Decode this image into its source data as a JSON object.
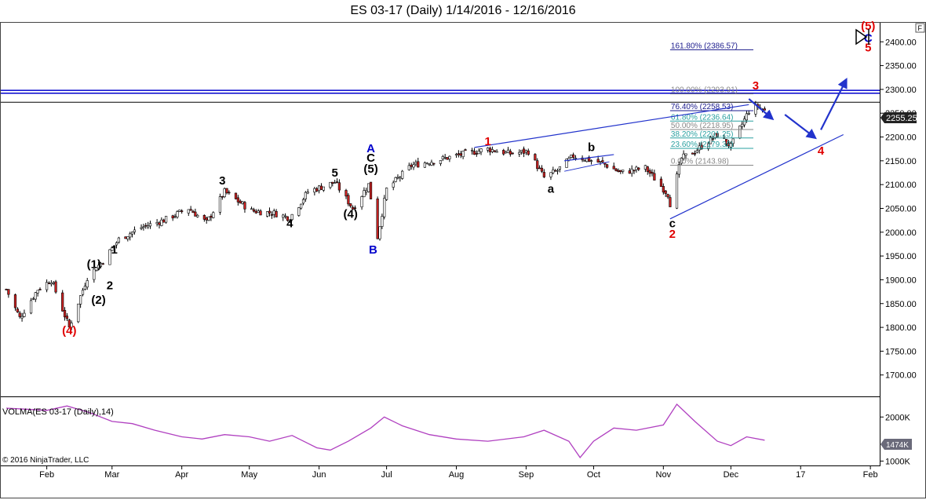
{
  "header": {
    "title": "ES 03-17 (Daily)  1/14/2016 - 12/16/2016"
  },
  "price_panel": {
    "last_price_label": "2255.25",
    "corner_label": "F"
  },
  "volume_panel": {
    "indicator_label": "VOLMA(ES 03-17 (Daily),14)",
    "last_value_label": "1474K",
    "copyright": "© 2016 NinjaTrader, LLC"
  },
  "colors": {
    "wave_red": "#e00000",
    "wave_blue": "#0000cc",
    "wave_black": "#000000",
    "trendline": "#2233cc",
    "volma": "#b040c0",
    "fib_teal": "#2aa0a0",
    "fib_gray": "#888888",
    "fib_navy": "#1a1a8c"
  },
  "chart_data": [
    {
      "type": "candlestick",
      "title": "ES 03-17 (Daily)  1/14/2016 - 12/16/2016",
      "x_ticks": [
        "Feb",
        "Mar",
        "Apr",
        "May",
        "Jun",
        "Jul",
        "Aug",
        "Sep",
        "Oct",
        "Nov",
        "Dec",
        "17",
        "Feb"
      ],
      "y_ticks": [
        "1700.00",
        "1750.00",
        "1800.00",
        "1850.00",
        "1900.00",
        "1950.00",
        "2000.00",
        "2050.00",
        "2100.00",
        "2150.00",
        "2200.00",
        "2250.00",
        "2300.00",
        "2350.00",
        "2400.00"
      ],
      "ylim": [
        1655,
        2440
      ],
      "grid": false,
      "last_price": 2255.25,
      "close_path": [
        [
          "1/14/2016",
          1880
        ],
        [
          "1/20/2016",
          1820
        ],
        [
          "1/28/2016",
          1880
        ],
        [
          "2/3/2016",
          1900
        ],
        [
          "2/11/2016",
          1800
        ],
        [
          "2/19/2016",
          1905
        ],
        [
          "2/26/2016",
          1940
        ],
        [
          "3/4/2016",
          1985
        ],
        [
          "3/14/2016",
          2010
        ],
        [
          "3/24/2016",
          2025
        ],
        [
          "4/4/2016",
          2050
        ],
        [
          "4/12/2016",
          2020
        ],
        [
          "4/20/2016",
          2085
        ],
        [
          "5/2/2016",
          2045
        ],
        [
          "5/12/2016",
          2040
        ],
        [
          "5/19/2016",
          2030
        ],
        [
          "5/27/2016",
          2085
        ],
        [
          "6/8/2016",
          2105
        ],
        [
          "6/16/2016",
          2050
        ],
        [
          "6/23/2016",
          2100
        ],
        [
          "6/27/2016",
          1990
        ],
        [
          "7/1/2016",
          2090
        ],
        [
          "7/12/2016",
          2140
        ],
        [
          "7/22/2016",
          2150
        ],
        [
          "8/5/2016",
          2165
        ],
        [
          "8/15/2016",
          2175
        ],
        [
          "8/25/2016",
          2165
        ],
        [
          "9/2/2016",
          2170
        ],
        [
          "9/9/2016",
          2115
        ],
        [
          "9/15/2016",
          2130
        ],
        [
          "9/22/2016",
          2160
        ],
        [
          "10/5/2016",
          2145
        ],
        [
          "10/13/2016",
          2125
        ],
        [
          "10/24/2016",
          2135
        ],
        [
          "11/3/2016",
          2080
        ],
        [
          "11/4/2016",
          2060
        ],
        [
          "11/9/2016",
          2155
        ],
        [
          "11/15/2016",
          2170
        ],
        [
          "11/25/2016",
          2205
        ],
        [
          "12/1/2016",
          2180
        ],
        [
          "12/9/2016",
          2255
        ],
        [
          "12/13/2016",
          2265
        ],
        [
          "12/16/2016",
          2255
        ]
      ],
      "horizontal_lines": [
        2298,
        2292,
        2273
      ],
      "trendlines": [
        {
          "from": [
            "8/9/2016",
            2178
          ],
          "to": [
            "12/9/2016",
            2268
          ]
        },
        {
          "from": [
            "11/4/2016",
            2028
          ],
          "to": [
            "1/20/2017",
            2205
          ]
        },
        {
          "from": [
            "9/18/2016",
            2150
          ],
          "to": [
            "10/10/2016",
            2163
          ]
        },
        {
          "from": [
            "9/18/2016",
            2150
          ],
          "to": [
            "9/18/2016",
            2150
          ]
        }
      ],
      "projected_arrows": [
        {
          "from": [
            "12/9/2016",
            2280
          ],
          "to": [
            "12/19/2016",
            2240
          ]
        },
        {
          "from": [
            "12/25/2016",
            2247
          ],
          "to": [
            "1/7/2017",
            2200
          ]
        },
        {
          "from": [
            "1/10/2017",
            2215
          ],
          "to": [
            "1/21/2017",
            2318
          ]
        }
      ],
      "fibonacci_levels": [
        {
          "label": "161.80% (2386.57)",
          "value": 2386.57,
          "color": "navy"
        },
        {
          "label": "100.00% (2293.91)",
          "value": 2293.91,
          "color": "gray"
        },
        {
          "label": "76.40% (2258.53)",
          "value": 2258.53,
          "color": "navy"
        },
        {
          "label": "61.80% (2236.64)",
          "value": 2236.64,
          "color": "teal"
        },
        {
          "label": "50.00% (2218.95)",
          "value": 2218.95,
          "color": "gray"
        },
        {
          "label": "38.20% (2201.25)",
          "value": 2201.25,
          "color": "teal"
        },
        {
          "label": "23.60% (2179.38)",
          "value": 2179.38,
          "color": "teal"
        },
        {
          "label": "0.00% (2143.98)",
          "value": 2143.98,
          "color": "gray"
        }
      ],
      "wave_labels": [
        {
          "text": "(4)",
          "date": "2/11/2016",
          "price": 1785,
          "color": "red"
        },
        {
          "text": "(1)",
          "date": "2/22/2016",
          "price": 1925,
          "color": "black"
        },
        {
          "text": "(2)",
          "date": "2/24/2016",
          "price": 1850,
          "color": "black"
        },
        {
          "text": "1",
          "date": "3/2/2016",
          "price": 1955,
          "color": "black"
        },
        {
          "text": "2",
          "date": "2/29/2016",
          "price": 1880,
          "color": "black"
        },
        {
          "text": "3",
          "date": "4/19/2016",
          "price": 2100,
          "color": "black"
        },
        {
          "text": "4",
          "date": "5/19/2016",
          "price": 2010,
          "color": "black"
        },
        {
          "text": "5",
          "date": "6/8/2016",
          "price": 2117,
          "color": "black"
        },
        {
          "text": "(4)",
          "date": "6/15/2016",
          "price": 2030,
          "color": "black"
        },
        {
          "text": "(5)",
          "date": "6/24/2016",
          "price": 2125,
          "color": "black"
        },
        {
          "text": "C",
          "date": "6/24/2016",
          "price": 2148,
          "color": "black"
        },
        {
          "text": "A",
          "date": "6/24/2016",
          "price": 2168,
          "color": "blue"
        },
        {
          "text": "B",
          "date": "6/25/2016",
          "price": 1955,
          "color": "blue"
        },
        {
          "text": "1",
          "date": "8/15/2016",
          "price": 2183,
          "color": "red"
        },
        {
          "text": "a",
          "date": "9/12/2016",
          "price": 2083,
          "color": "black"
        },
        {
          "text": "b",
          "date": "9/30/2016",
          "price": 2170,
          "color": "black"
        },
        {
          "text": "c",
          "date": "11/5/2016",
          "price": 2010,
          "color": "black"
        },
        {
          "text": "2",
          "date": "11/5/2016",
          "price": 1988,
          "color": "red"
        },
        {
          "text": "3",
          "date": "12/12/2016",
          "price": 2300,
          "color": "red"
        },
        {
          "text": "4",
          "date": "1/10/2017",
          "price": 2163,
          "color": "red"
        },
        {
          "text": "(5)",
          "date": "1/31/2017",
          "price": 2425,
          "color": "red"
        },
        {
          "text": "C",
          "date": "1/31/2017",
          "price": 2400,
          "color": "blue"
        },
        {
          "text": "5",
          "date": "1/31/2017",
          "price": 2380,
          "color": "red"
        }
      ]
    },
    {
      "type": "line",
      "title": "VOLMA(ES 03-17 (Daily),14)",
      "y_ticks": [
        "1000K",
        "2000K"
      ],
      "ylim": [
        900,
        2450
      ],
      "last_value": 1474,
      "series": [
        {
          "name": "VOLMA(ES 03-17 (Daily),14)",
          "values": [
            [
              "1/14/2016",
              2200
            ],
            [
              "1/22/2016",
              2180
            ],
            [
              "2/1/2016",
              2150
            ],
            [
              "2/10/2016",
              2250
            ],
            [
              "2/20/2016",
              2100
            ],
            [
              "3/1/2016",
              1900
            ],
            [
              "3/10/2016",
              1850
            ],
            [
              "3/20/2016",
              1700
            ],
            [
              "4/1/2016",
              1550
            ],
            [
              "4/10/2016",
              1500
            ],
            [
              "4/20/2016",
              1600
            ],
            [
              "5/1/2016",
              1550
            ],
            [
              "5/10/2016",
              1450
            ],
            [
              "5/20/2016",
              1580
            ],
            [
              "5/31/2016",
              1300
            ],
            [
              "6/6/2016",
              1250
            ],
            [
              "6/14/2016",
              1450
            ],
            [
              "6/24/2016",
              1750
            ],
            [
              "6/30/2016",
              2000
            ],
            [
              "7/8/2016",
              1800
            ],
            [
              "7/20/2016",
              1600
            ],
            [
              "8/1/2016",
              1500
            ],
            [
              "8/15/2016",
              1450
            ],
            [
              "8/31/2016",
              1550
            ],
            [
              "9/9/2016",
              1700
            ],
            [
              "9/20/2016",
              1450
            ],
            [
              "9/25/2016",
              1080
            ],
            [
              "10/1/2016",
              1450
            ],
            [
              "10/10/2016",
              1750
            ],
            [
              "10/20/2016",
              1700
            ],
            [
              "11/1/2016",
              1820
            ],
            [
              "11/7/2016",
              2290
            ],
            [
              "11/15/2016",
              1900
            ],
            [
              "11/25/2016",
              1450
            ],
            [
              "12/1/2016",
              1350
            ],
            [
              "12/8/2016",
              1550
            ],
            [
              "12/16/2016",
              1474
            ]
          ]
        }
      ]
    }
  ]
}
